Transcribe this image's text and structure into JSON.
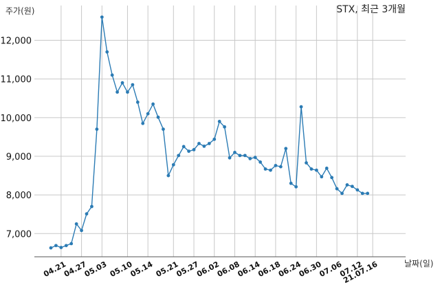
{
  "chart_data": {
    "type": "line",
    "title": "STX, 최근 3개월",
    "ylabel": "주가(원)",
    "xlabel": "날짜(일)",
    "ylim": [
      6400,
      12900
    ],
    "yticks": [
      7000,
      8000,
      9000,
      10000,
      11000,
      12000
    ],
    "ytick_labels": [
      "7,000",
      "8,000",
      "9,000",
      "10,000",
      "11,000",
      "12,000"
    ],
    "grid": true,
    "line_color": "#2b7bb4",
    "xtick_labels": [
      "04.21",
      "04.27",
      "05.03",
      "05.10",
      "05.14",
      "05.21",
      "05.27",
      "06.02",
      "06.08",
      "06.14",
      "06.18",
      "06.24",
      "06.30",
      "07.06",
      "07.12",
      "21.07.16"
    ],
    "xtick_index": [
      2,
      6,
      10,
      15,
      19,
      24,
      28,
      32,
      36,
      40,
      44,
      48,
      52,
      56,
      60,
      63
    ],
    "series": [
      {
        "values": [
          6630,
          6690,
          6640,
          6690,
          6740,
          7250,
          7080,
          7510,
          7700,
          9700,
          12600,
          11700,
          11100,
          10660,
          10900,
          10660,
          10850,
          10400,
          9850,
          10100,
          10350,
          10010,
          9700,
          8500,
          8780,
          9020,
          9250,
          9130,
          9170,
          9330,
          9260,
          9330,
          9440,
          9900,
          9760,
          8960,
          9100,
          9020,
          9020,
          8940,
          8970,
          8850,
          8670,
          8640,
          8760,
          8730,
          9200,
          8300,
          8210,
          10280,
          8830,
          8670,
          8640,
          8470,
          8690,
          8450,
          8160,
          8040,
          8260,
          8220,
          8130,
          8040,
          8040
        ]
      }
    ]
  }
}
